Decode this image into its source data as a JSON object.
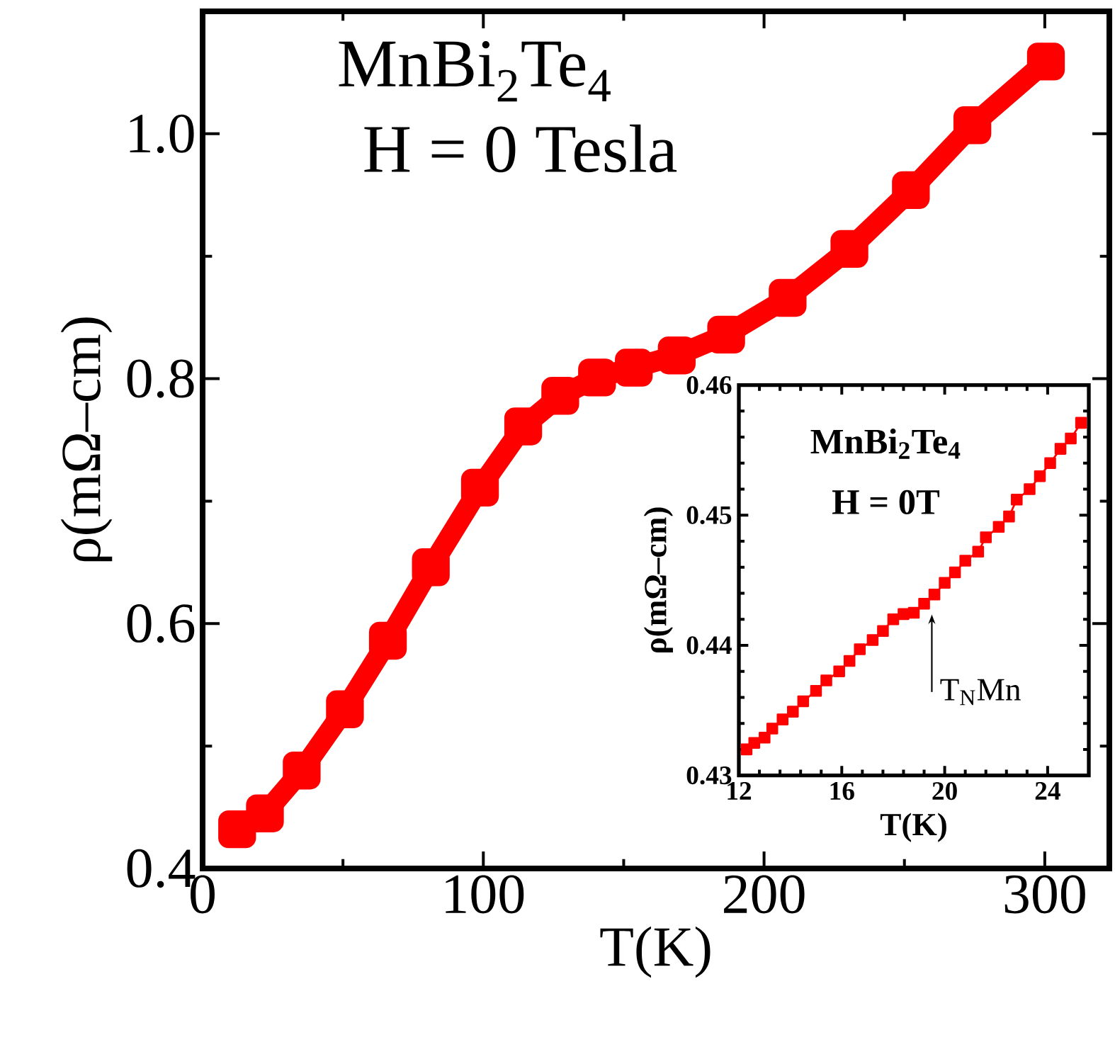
{
  "chart_data": [
    {
      "type": "line",
      "title": "MnBi$_{2}$Te$_{4}$",
      "subtitle": "H = 0 Tesla",
      "xlabel": "T(K)",
      "ylabel": "ρ(mΩ–cm)",
      "xlim": [
        0,
        323
      ],
      "ylim": [
        0.4,
        1.1
      ],
      "xticks": [
        0,
        100,
        200,
        300
      ],
      "yticks": [
        0.4,
        0.6,
        0.8,
        {
          "value": 1.0,
          "label": "1.0"
        }
      ],
      "marker": "square",
      "line_style": "solid",
      "series": [
        {
          "color": "#ff0000",
          "x": [
            12.3,
            22.2,
            35.3,
            50.7,
            66,
            81.3,
            98.8,
            114.2,
            127.4,
            140.5,
            153.6,
            168.9,
            186.5,
            208.4,
            230.4,
            252.3,
            274.2,
            300.4
          ],
          "values": [
            0.432,
            0.445,
            0.48,
            0.53,
            0.586,
            0.646,
            0.711,
            0.761,
            0.786,
            0.801,
            0.809,
            0.819,
            0.836,
            0.866,
            0.906,
            0.954,
            1.007,
            1.059
          ]
        }
      ]
    },
    {
      "type": "line",
      "title": "MnBi$_{2}$Te$_{4}$",
      "subtitle": "H = 0T",
      "xlabel": "T(K)",
      "ylabel": "ρ(mΩ–cm)",
      "xlim": [
        12,
        25.6
      ],
      "ylim": [
        0.43,
        0.46
      ],
      "xticks": [
        12,
        16,
        20,
        24
      ],
      "yticks": [
        0.43,
        0.44,
        0.45,
        0.46
      ],
      "marker": "square",
      "line_style": "solid",
      "annotations": [
        {
          "text": "T$_{N}$Mn",
          "x": 19.5,
          "y": 0.4428
        }
      ],
      "series": [
        {
          "color": "#ff0000",
          "x": [
            12.3,
            12.6,
            13.0,
            13.3,
            13.7,
            14.1,
            14.5,
            15.0,
            15.4,
            15.9,
            16.3,
            16.7,
            17.2,
            17.6,
            18.0,
            18.4,
            18.8,
            19.2,
            19.6,
            20.0,
            20.4,
            20.8,
            21.3,
            21.6,
            22.1,
            22.5,
            22.8,
            23.3,
            23.7,
            24.1,
            24.5,
            24.9,
            25.3
          ],
          "values": [
            0.432,
            0.4325,
            0.4329,
            0.4336,
            0.4343,
            0.4349,
            0.4357,
            0.4365,
            0.4373,
            0.438,
            0.4388,
            0.4397,
            0.4404,
            0.4411,
            0.442,
            0.4424,
            0.4425,
            0.4432,
            0.4439,
            0.4448,
            0.4456,
            0.4465,
            0.4472,
            0.4483,
            0.4491,
            0.4499,
            0.4512,
            0.452,
            0.453,
            0.454,
            0.4551,
            0.4559,
            0.4571
          ]
        }
      ]
    }
  ]
}
